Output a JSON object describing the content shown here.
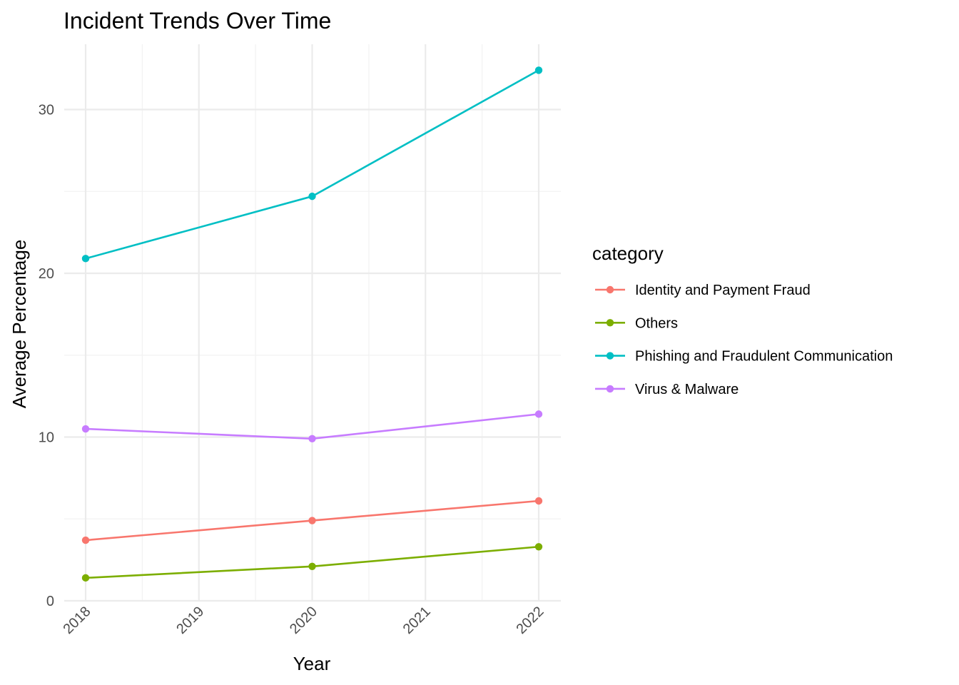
{
  "chart_data": {
    "type": "line",
    "title": "Incident Trends Over Time",
    "xlabel": "Year",
    "ylabel": "Average Percentage",
    "x": [
      2018,
      2020,
      2022
    ],
    "x_ticks": [
      2018,
      2019,
      2020,
      2021,
      2022
    ],
    "y_ticks": [
      0,
      10,
      20,
      30
    ],
    "xlim": [
      2018,
      2022
    ],
    "ylim": [
      0,
      32.4
    ],
    "grid": true,
    "legend": {
      "title": "category",
      "placement": "right"
    },
    "series": [
      {
        "name": "Identity and Payment Fraud",
        "color": "#F8766D",
        "values": [
          3.7,
          4.9,
          6.1
        ]
      },
      {
        "name": "Others",
        "color": "#7CAE00",
        "values": [
          1.4,
          2.1,
          3.3
        ]
      },
      {
        "name": "Phishing and Fraudulent Communication",
        "color": "#00BFC4",
        "values": [
          20.9,
          24.7,
          32.4
        ]
      },
      {
        "name": "Virus & Malware",
        "color": "#C77CFF",
        "values": [
          10.5,
          9.9,
          11.4
        ]
      }
    ]
  }
}
